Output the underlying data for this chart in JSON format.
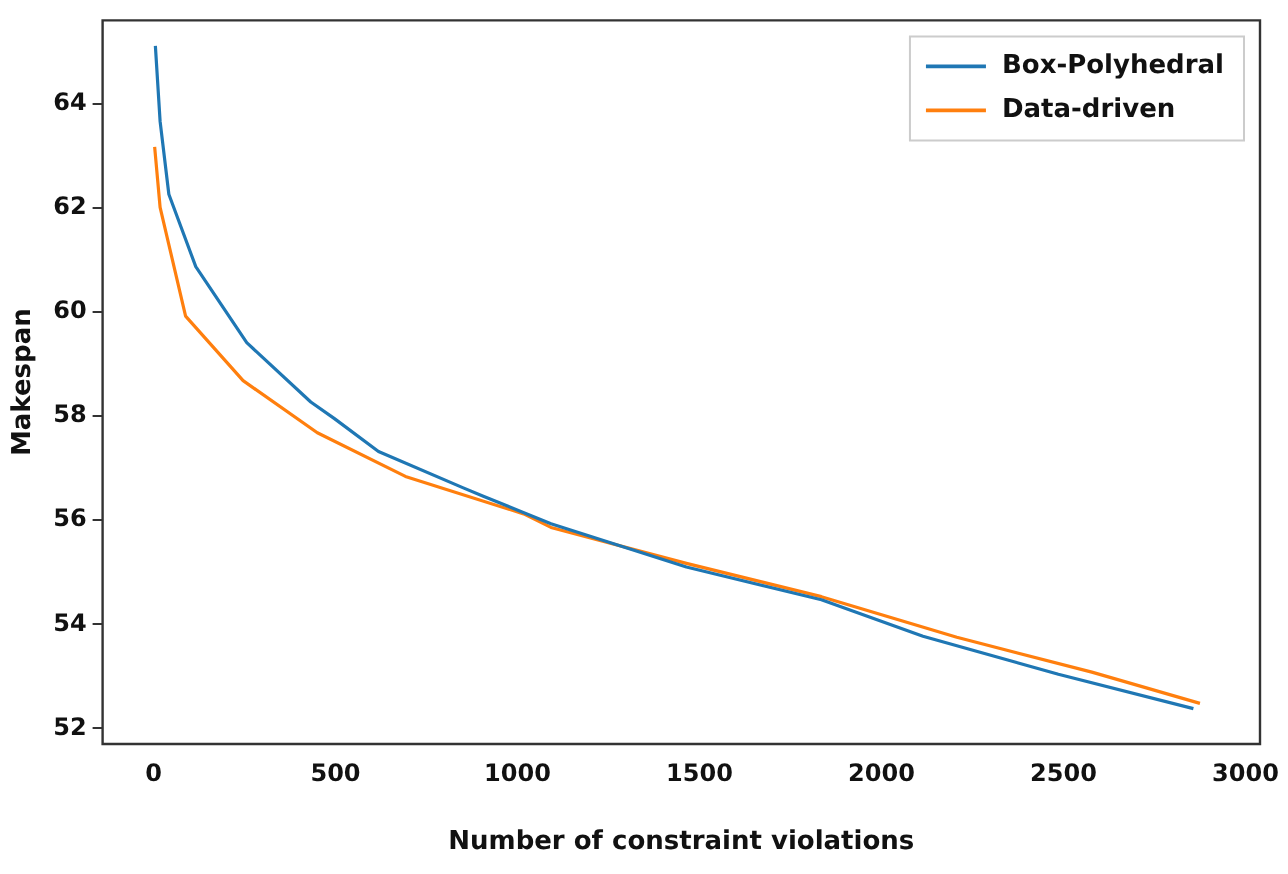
{
  "chart_data": {
    "type": "line",
    "xlabel": "Number of constraint violations",
    "ylabel": "Makespan",
    "xlim": [
      -140,
      3040
    ],
    "ylim": [
      51.7,
      65.6
    ],
    "xticks": [
      0,
      500,
      1000,
      1500,
      2000,
      2500,
      3000
    ],
    "yticks": [
      52,
      54,
      56,
      58,
      60,
      62,
      64
    ],
    "grid": false,
    "legend": "top right",
    "marker": "none",
    "line_style": "solid",
    "series": [
      {
        "name": "Box-Polyhedral",
        "color": "#1f77b4",
        "x": [
          5,
          18,
          42,
          116,
          256,
          432,
          497,
          618,
          851,
          906,
          1092,
          1464,
          1835,
          2114,
          2486,
          2857
        ],
        "values": [
          65.11,
          63.66,
          62.26,
          60.87,
          59.41,
          58.27,
          57.95,
          57.32,
          56.62,
          56.46,
          55.93,
          55.1,
          54.47,
          53.77,
          53.04,
          52.38
        ]
      },
      {
        "name": "Data-driven",
        "color": "#ff7f0e",
        "x": [
          3,
          18,
          88,
          246,
          450,
          692,
          1017,
          1092,
          1464,
          1835,
          2207,
          2578,
          2875
        ],
        "values": [
          63.17,
          62.01,
          59.92,
          58.68,
          57.68,
          56.84,
          56.12,
          55.86,
          55.17,
          54.53,
          53.75,
          53.08,
          52.48
        ]
      }
    ]
  }
}
